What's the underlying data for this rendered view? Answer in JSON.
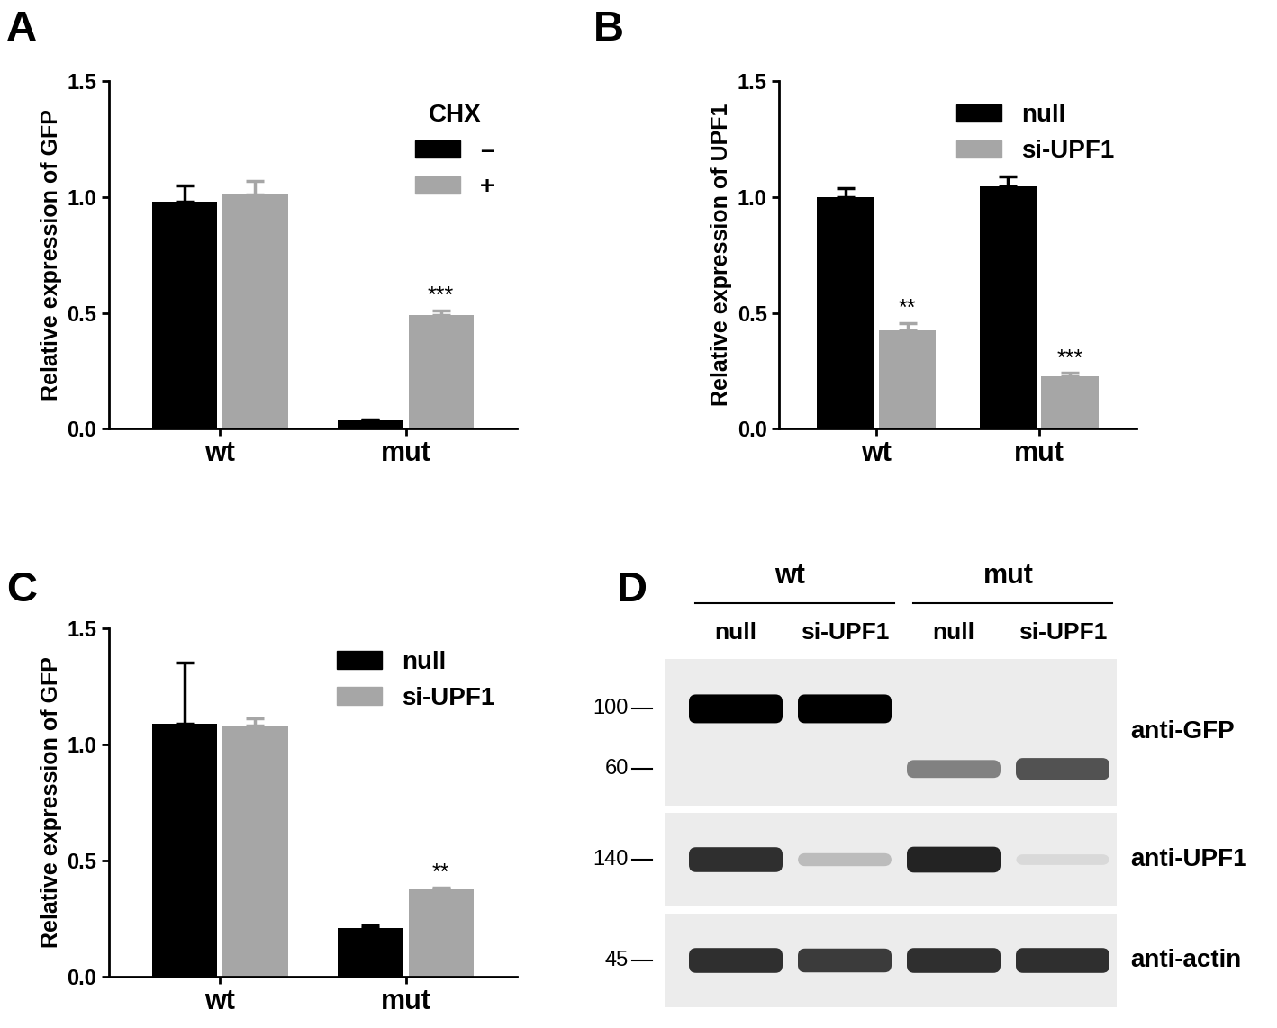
{
  "chart_data": [
    {
      "panel": "A",
      "type": "bar",
      "categories": [
        "wt",
        "mut"
      ],
      "y_label": "Relative expression of GFP",
      "series": [
        {
          "name": "–",
          "color": "#000000",
          "values": [
            0.98,
            0.035
          ],
          "errors": [
            0.07,
            0.005
          ]
        },
        {
          "name": "+",
          "color": "#a6a6a6",
          "values": [
            1.01,
            0.49
          ],
          "errors": [
            0.06,
            0.02
          ]
        }
      ],
      "legend_title": "CHX",
      "legend": "upper right",
      "annotations": [
        {
          "series": 1,
          "category": 1,
          "text": "***"
        }
      ],
      "ylim": [
        0,
        1.5
      ],
      "yticks": [
        {
          "value": 0,
          "label": "0.0"
        },
        {
          "value": 0.5,
          "label": "0.5"
        },
        {
          "value": 1,
          "label": "1.0"
        },
        {
          "value": 1.5,
          "label": "1.5"
        }
      ],
      "grid": false
    },
    {
      "panel": "B",
      "type": "bar",
      "categories": [
        "wt",
        "mut"
      ],
      "y_label": "Relative expression of UPF1",
      "series": [
        {
          "name": "null",
          "color": "#000000",
          "values": [
            1.0,
            1.045
          ],
          "errors": [
            0.04,
            0.045
          ]
        },
        {
          "name": "si-UPF1",
          "color": "#a6a6a6",
          "values": [
            0.425,
            0.225
          ],
          "errors": [
            0.03,
            0.015
          ]
        }
      ],
      "legend": "upper right",
      "annotations": [
        {
          "series": 1,
          "category": 0,
          "text": "**"
        },
        {
          "series": 1,
          "category": 1,
          "text": "***"
        }
      ],
      "ylim": [
        0,
        1.5
      ],
      "yticks": [
        {
          "value": 0,
          "label": "0.0"
        },
        {
          "value": 0.5,
          "label": "0.5"
        },
        {
          "value": 1,
          "label": "1.0"
        },
        {
          "value": 1.5,
          "label": "1.5"
        }
      ],
      "grid": false
    },
    {
      "panel": "C",
      "type": "bar",
      "categories": [
        "wt",
        "mut"
      ],
      "y_label": "Relative expression of GFP",
      "series": [
        {
          "name": "null",
          "color": "#000000",
          "values": [
            1.09,
            0.21
          ],
          "errors": [
            0.26,
            0.01
          ]
        },
        {
          "name": "si-UPF1",
          "color": "#a6a6a6",
          "values": [
            1.08,
            0.375
          ],
          "errors": [
            0.03,
            0.01
          ]
        }
      ],
      "legend": "upper right",
      "annotations": [
        {
          "series": 1,
          "category": 1,
          "text": "**"
        }
      ],
      "ylim": [
        0,
        1.5
      ],
      "yticks": [
        {
          "value": 0,
          "label": "0.0"
        },
        {
          "value": 0.5,
          "label": "0.5"
        },
        {
          "value": 1,
          "label": "1.0"
        },
        {
          "value": 1.5,
          "label": "1.5"
        }
      ],
      "grid": false
    }
  ],
  "blot": {
    "panel": "D",
    "groups": [
      {
        "label": "wt",
        "lanes": [
          "null",
          "si-UPF1"
        ]
      },
      {
        "label": "mut",
        "lanes": [
          "null",
          "si-UPF1"
        ]
      }
    ],
    "rows": [
      {
        "antibody": "anti-GFP",
        "markers": [
          100,
          60
        ],
        "band_sizes": [
          100,
          100,
          60,
          60
        ],
        "intensities": [
          1.0,
          1.0,
          0.45,
          0.65
        ]
      },
      {
        "antibody": "anti-UPF1",
        "markers": [
          140
        ],
        "band_sizes": [
          140,
          140,
          140,
          140
        ],
        "intensities": [
          0.8,
          0.2,
          0.85,
          0.08
        ]
      },
      {
        "antibody": "anti-actin",
        "markers": [
          45
        ],
        "band_sizes": [
          45,
          45,
          45,
          45
        ],
        "intensities": [
          0.8,
          0.75,
          0.8,
          0.8
        ]
      }
    ]
  }
}
